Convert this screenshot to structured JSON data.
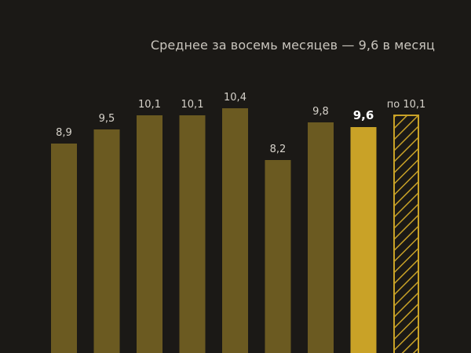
{
  "colors": {
    "background": "#1b1916",
    "bar": "#6b5a21",
    "highlight": "#c9a227",
    "forecast": "#c9a227",
    "label": "#d6d2ca",
    "label_strong": "#ffffff"
  },
  "chart_data": {
    "type": "bar",
    "subtitle": "Среднее за восемь месяцев — 9,6 в месяц",
    "grid": false,
    "bars": [
      {
        "value": 8.9,
        "label": "8,9",
        "style": "normal"
      },
      {
        "value": 9.5,
        "label": "9,5",
        "style": "normal"
      },
      {
        "value": 10.1,
        "label": "10,1",
        "style": "normal"
      },
      {
        "value": 10.1,
        "label": "10,1",
        "style": "normal"
      },
      {
        "value": 10.4,
        "label": "10,4",
        "style": "normal"
      },
      {
        "value": 8.2,
        "label": "8,2",
        "style": "normal"
      },
      {
        "value": 9.8,
        "label": "9,8",
        "style": "normal"
      },
      {
        "value": 9.6,
        "label": "9,6",
        "style": "highlight"
      },
      {
        "value": 10.1,
        "label": "по 10,1",
        "style": "forecast"
      }
    ]
  }
}
